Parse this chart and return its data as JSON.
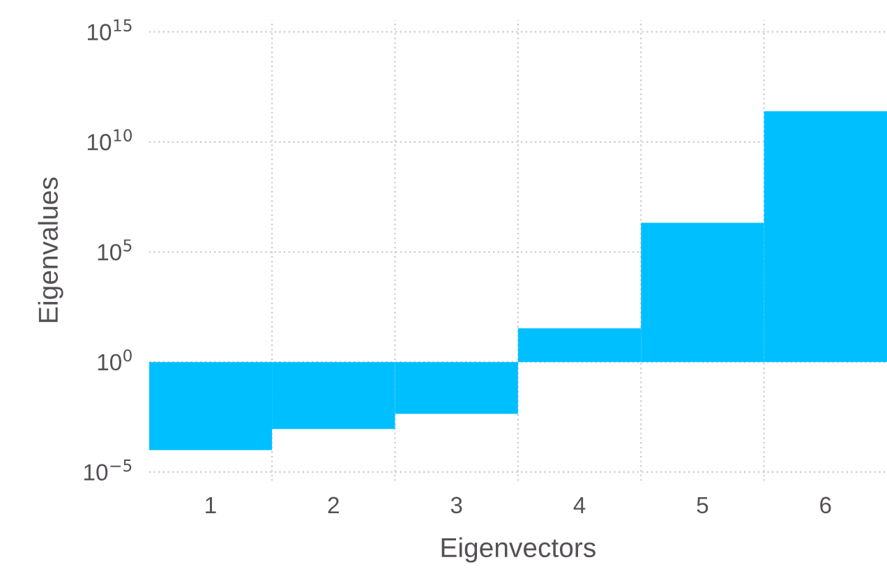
{
  "chart_data": {
    "type": "bar",
    "xlabel": "Eigenvectors",
    "ylabel": "Eigenvalues",
    "categories": [
      "1",
      "2",
      "3",
      "4",
      "5",
      "6"
    ],
    "base": [
      1,
      1,
      1,
      1,
      1,
      1
    ],
    "values": [
      -0.9999,
      -0.9991,
      -0.9956,
      33,
      2100000,
      250000000000
    ],
    "color": "#00bfff",
    "log": "y",
    "ylim": [
      4e-06,
      3500000000000000.0
    ],
    "yticks": [
      {
        "value": 1e-05,
        "label": "10$^{−5}$"
      },
      {
        "value": 1,
        "label": "10$^{0}$"
      },
      {
        "value": 100000.0,
        "label": "10$^{5}$"
      },
      {
        "value": 10000000000.0,
        "label": "10$^{10}$"
      },
      {
        "value": 1000000000000000.0,
        "label": "10$^{15}$"
      }
    ],
    "grid": true,
    "legend": false
  }
}
